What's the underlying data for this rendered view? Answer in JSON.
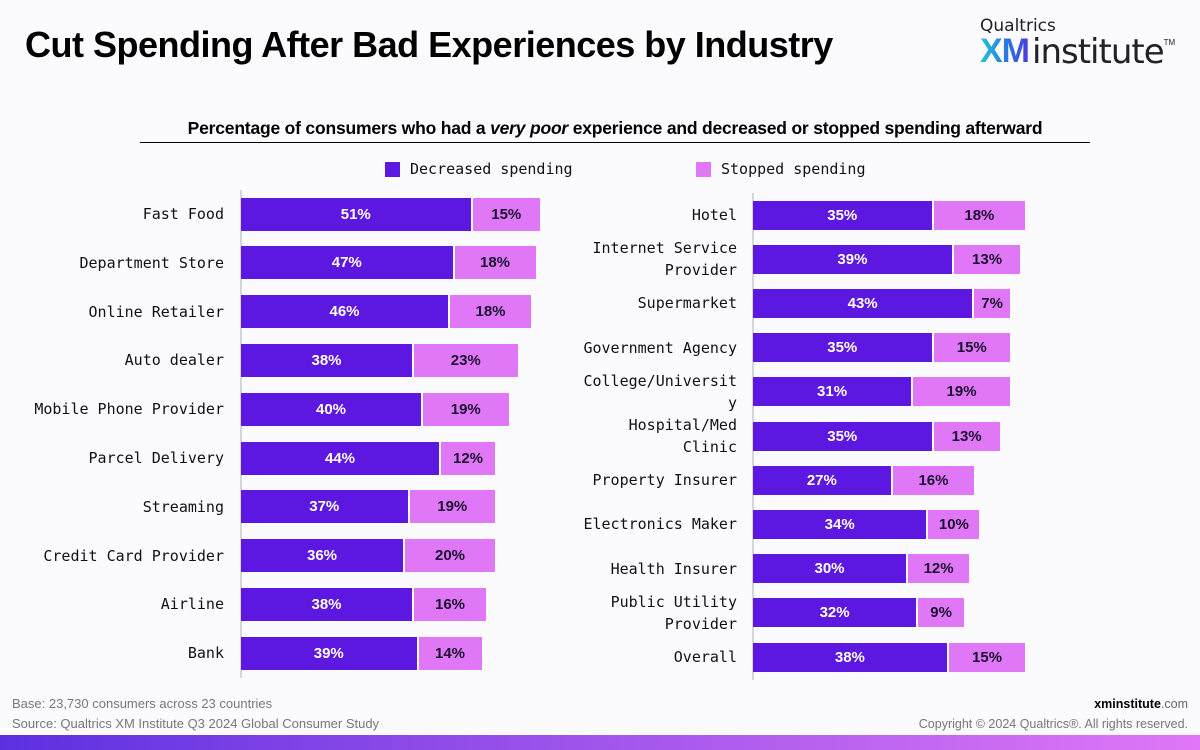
{
  "header": {
    "title": "Cut Spending After Bad Experiences by Industry",
    "logo": {
      "brand": "Qualtrics",
      "xm": "XM",
      "institute": "institute",
      "tm": "TM"
    }
  },
  "chart_data": [
    {
      "type": "bar",
      "orientation": "horizontal",
      "stacked": true,
      "title": "Percentage of consumers who had a very poor experience and decreased or stopped spending afterward",
      "title_parts": {
        "before": "Percentage of consumers who had a ",
        "italic": "very poor",
        "after": " experience and decreased or stopped spending afterward"
      },
      "legend": [
        {
          "name": "Decreased spending",
          "color": "#5c17e0"
        },
        {
          "name": "Stopped spending",
          "color": "#e077f7"
        }
      ],
      "legend_position": "top-center",
      "categories": [
        "Fast Food",
        "Department Store",
        "Online Retailer",
        "Auto dealer",
        "Mobile Phone Provider",
        "Parcel Delivery",
        "Streaming",
        "Credit Card Provider",
        "Airline",
        "Bank"
      ],
      "series": [
        {
          "name": "Decreased spending",
          "values": [
            51,
            47,
            46,
            38,
            40,
            44,
            37,
            36,
            38,
            39
          ]
        },
        {
          "name": "Stopped spending",
          "values": [
            15,
            18,
            18,
            23,
            19,
            12,
            19,
            20,
            16,
            14
          ]
        }
      ],
      "value_format": "%",
      "grid": false
    },
    {
      "type": "bar",
      "orientation": "horizontal",
      "stacked": true,
      "categories": [
        "Hotel",
        "Internet Service Provider",
        "Supermarket",
        "Government Agency",
        "College/University",
        "Hospital/Med Clinic",
        "Property Insurer",
        "Electronics Maker",
        "Health Insurer",
        "Public Utility Provider",
        "Overall"
      ],
      "category_display": [
        "Hotel",
        "Internet Service\nProvider",
        "Supermarket",
        "Government Agency",
        "College/Universit\ny",
        "Hospital/Med\nClinic",
        "Property Insurer",
        "Electronics Maker",
        "Health Insurer",
        "Public Utility\nProvider",
        "Overall"
      ],
      "series": [
        {
          "name": "Decreased spending",
          "values": [
            35,
            39,
            43,
            35,
            31,
            35,
            27,
            34,
            30,
            32,
            38
          ]
        },
        {
          "name": "Stopped spending",
          "values": [
            18,
            13,
            7,
            15,
            19,
            13,
            16,
            10,
            12,
            9,
            15
          ]
        }
      ],
      "value_format": "%",
      "grid": false
    }
  ],
  "footer": {
    "base": "Base: 23,730 consumers across 23 countries",
    "source": "Source: Qualtrics XM Institute Q3 2024 Global Consumer Study",
    "url_bold": "xminstitute",
    "url_rest": ".com",
    "copyright": "Copyright © 2024 Qualtrics®. All rights reserved."
  }
}
